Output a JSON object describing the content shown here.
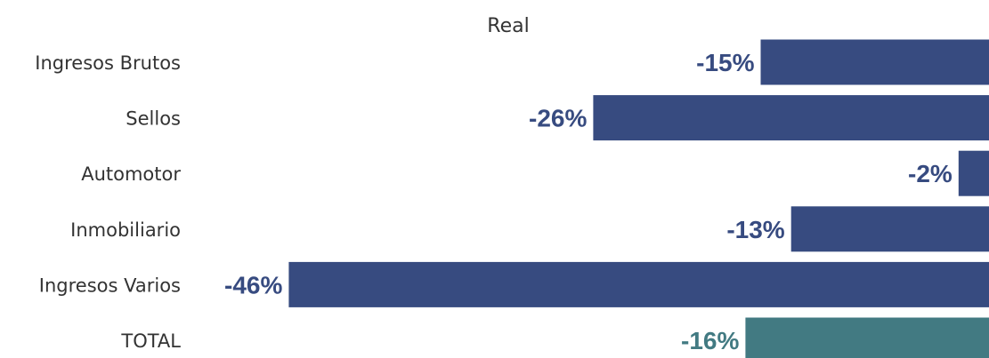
{
  "chart_data": {
    "type": "bar",
    "orientation": "horizontal",
    "title": "",
    "series": [
      {
        "name": "Real",
        "values": [
          -15,
          -26,
          -2,
          -13,
          -46,
          -16
        ]
      }
    ],
    "categories": [
      "Ingresos Brutos",
      "Sellos",
      "Automotor",
      "Inmobiliario",
      "Ingresos Varios",
      "TOTAL"
    ],
    "value_labels": [
      "-15%",
      "-26%",
      "-2%",
      "-13%",
      "-46%",
      "-16%"
    ],
    "xlim": [
      -48,
      0
    ],
    "grid": false,
    "legend": "none",
    "colors": {
      "bar": "#374b80",
      "total_bar": "#427a82",
      "label": "#374b80",
      "total_label": "#427a82"
    }
  }
}
